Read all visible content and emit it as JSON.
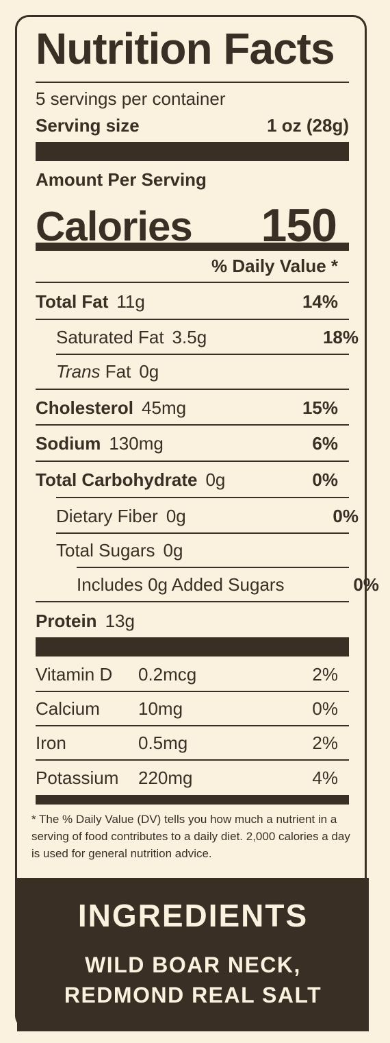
{
  "label": {
    "title": "Nutrition Facts",
    "servings_per_container": "5 servings per container",
    "serving_size_label": "Serving size",
    "serving_size_value": "1 oz (28g)",
    "amount_per_serving": "Amount Per Serving",
    "calories_label": "Calories",
    "calories_value": "150",
    "dv_header": "% Daily Value *",
    "nutrients": [
      {
        "name": "Total Fat",
        "amount": "11g",
        "dv": "14%"
      },
      {
        "name": "Saturated Fat",
        "amount": "3.5g",
        "dv": "18%"
      },
      {
        "name_italic": "Trans",
        "name": "Fat",
        "amount": "0g"
      },
      {
        "name": "Cholesterol",
        "amount": "45mg",
        "dv": "15%"
      },
      {
        "name": "Sodium",
        "amount": "130mg",
        "dv": "6%"
      },
      {
        "name": "Total Carbohydrate",
        "amount": "0g",
        "dv": "0%"
      },
      {
        "name": "Dietary Fiber",
        "amount": "0g",
        "dv": "0%"
      },
      {
        "name": "Total Sugars",
        "amount": "0g"
      },
      {
        "name": "Includes 0g Added Sugars",
        "dv": "0%"
      },
      {
        "name": "Protein",
        "amount": "13g"
      }
    ],
    "vitamins": [
      {
        "name": "Vitamin D",
        "amount": "0.2mcg",
        "dv": "2%"
      },
      {
        "name": "Calcium",
        "amount": "10mg",
        "dv": "0%"
      },
      {
        "name": "Iron",
        "amount": "0.5mg",
        "dv": "2%"
      },
      {
        "name": "Potassium",
        "amount": "220mg",
        "dv": "4%"
      }
    ],
    "footnote": "* The % Daily Value (DV) tells you how much a nutrient in a serving of food contributes to a daily diet. 2,000 calories a day is used for general nutrition advice."
  },
  "ingredients": {
    "title": "INGREDIENTS",
    "line1": "WILD BOAR NECK,",
    "line2": "REDMOND REAL SALT"
  },
  "colors": {
    "background": "#fbf1df",
    "ink": "#3a2f25"
  }
}
